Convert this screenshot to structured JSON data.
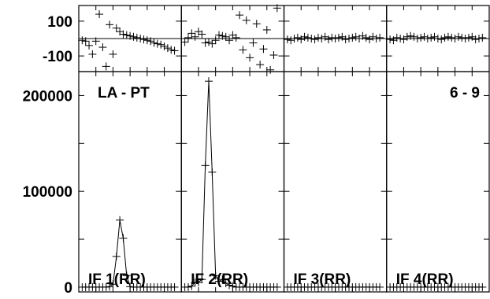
{
  "chart_data": [
    {
      "type": "scatter",
      "panel": "phase",
      "yticks": [
        100,
        -100
      ],
      "ylim": [
        -190,
        190
      ],
      "xlim": [
        0,
        30
      ],
      "series": [
        {
          "panel": "IF 1(RR)",
          "x": [
            1,
            2,
            3,
            4,
            5,
            6,
            7,
            8,
            9,
            10,
            11,
            12,
            13,
            14,
            15,
            16,
            17,
            18,
            19,
            20,
            21,
            22,
            23,
            24,
            25,
            26,
            27,
            28
          ],
          "y": [
            -10,
            -15,
            -40,
            -90,
            -15,
            140,
            -50,
            -160,
            80,
            -90,
            60,
            40,
            25,
            20,
            15,
            10,
            5,
            0,
            -5,
            -10,
            -15,
            -25,
            -30,
            -35,
            -45,
            -55,
            -65,
            -70
          ]
        },
        {
          "panel": "IF 2(RR)",
          "x": [
            1,
            2,
            3,
            4,
            5,
            6,
            7,
            8,
            9,
            10,
            11,
            12,
            13,
            14,
            15,
            16,
            17,
            18,
            19,
            20,
            21,
            22,
            23,
            24,
            25,
            26,
            27,
            28
          ],
          "y": [
            -20,
            5,
            30,
            10,
            40,
            25,
            -25,
            -20,
            -30,
            -10,
            20,
            15,
            10,
            -10,
            20,
            5,
            135,
            -65,
            105,
            -110,
            -25,
            85,
            -150,
            -60,
            50,
            -180,
            -95,
            175
          ]
        },
        {
          "panel": "IF 3(RR)",
          "x": [
            1,
            2,
            3,
            4,
            5,
            6,
            7,
            8,
            9,
            10,
            11,
            12,
            13,
            14,
            15,
            16,
            17,
            18,
            19,
            20,
            21,
            22,
            23,
            24,
            25,
            26,
            27,
            28
          ],
          "y": [
            -5,
            -10,
            0,
            5,
            -5,
            10,
            5,
            0,
            -5,
            5,
            0,
            10,
            -5,
            5,
            0,
            5,
            10,
            -5,
            0,
            5,
            10,
            0,
            15,
            5,
            -5,
            10,
            0,
            5
          ]
        },
        {
          "panel": "IF 4(RR)",
          "x": [
            1,
            2,
            3,
            4,
            5,
            6,
            7,
            8,
            9,
            10,
            11,
            12,
            13,
            14,
            15,
            16,
            17,
            18,
            19,
            20,
            21,
            22,
            23,
            24,
            25,
            26,
            27,
            28
          ],
          "y": [
            -5,
            -10,
            5,
            0,
            -5,
            10,
            15,
            10,
            0,
            5,
            10,
            0,
            5,
            10,
            0,
            -5,
            5,
            10,
            5,
            0,
            10,
            5,
            0,
            5,
            10,
            -5,
            0,
            5
          ]
        }
      ]
    },
    {
      "type": "line",
      "panel": "amplitude",
      "title_left": "LA - PT",
      "title_right": "6 - 9",
      "yticks": [
        200000,
        100000,
        0
      ],
      "ylim": [
        -5000,
        225000
      ],
      "xlim": [
        0,
        30
      ],
      "series": [
        {
          "panel": "IF 1(RR)",
          "x": [
            1,
            2,
            3,
            4,
            5,
            6,
            7,
            8,
            9,
            10,
            11,
            12,
            13,
            14,
            15,
            16,
            17,
            18,
            19,
            20,
            21,
            22,
            23,
            24,
            25,
            26,
            27,
            28
          ],
          "y": [
            0,
            0,
            0,
            0,
            0,
            0,
            0,
            0,
            500,
            3000,
            32000,
            70000,
            51000,
            12000,
            500,
            0,
            0,
            0,
            0,
            0,
            0,
            0,
            0,
            0,
            0,
            0,
            0,
            0
          ]
        },
        {
          "panel": "IF 2(RR)",
          "x": [
            1,
            2,
            3,
            4,
            5,
            6,
            7,
            8,
            9,
            10,
            11,
            12,
            13,
            14,
            15,
            16,
            17,
            18,
            19,
            20,
            21,
            22,
            23,
            24,
            25,
            26,
            27,
            28
          ],
          "y": [
            0,
            0,
            1000,
            5000,
            5000,
            8000,
            127000,
            215000,
            120000,
            12000,
            6000,
            8000,
            4000,
            2000,
            1000,
            0,
            0,
            0,
            0,
            0,
            0,
            0,
            0,
            0,
            0,
            0,
            0,
            0
          ]
        },
        {
          "panel": "IF 3(RR)",
          "x": [
            1,
            2,
            3,
            4,
            5,
            6,
            7,
            8,
            9,
            10,
            11,
            12,
            13,
            14,
            15,
            16,
            17,
            18,
            19,
            20,
            21,
            22,
            23,
            24,
            25,
            26,
            27,
            28
          ],
          "y": [
            0,
            0,
            0,
            0,
            0,
            0,
            0,
            0,
            0,
            0,
            0,
            0,
            0,
            0,
            0,
            0,
            0,
            0,
            0,
            0,
            0,
            0,
            0,
            0,
            0,
            0,
            0,
            0
          ]
        },
        {
          "panel": "IF 4(RR)",
          "x": [
            1,
            2,
            3,
            4,
            5,
            6,
            7,
            8,
            9,
            10,
            11,
            12,
            13,
            14,
            15,
            16,
            17,
            18,
            19,
            20,
            21,
            22,
            23,
            24,
            25,
            26,
            27,
            28
          ],
          "y": [
            0,
            0,
            0,
            0,
            0,
            0,
            0,
            0,
            0,
            0,
            0,
            0,
            0,
            0,
            0,
            0,
            0,
            0,
            0,
            0,
            0,
            0,
            0,
            0,
            0,
            0,
            0,
            0
          ]
        }
      ],
      "panel_labels": [
        "IF 1(RR)",
        "IF 2(RR)",
        "IF 3(RR)",
        "IF 4(RR)"
      ]
    }
  ]
}
